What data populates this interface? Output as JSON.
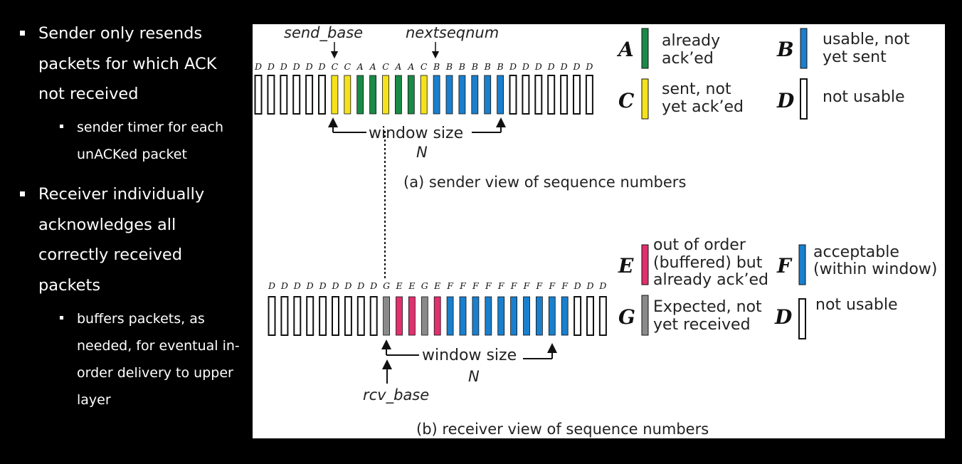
{
  "bullets": [
    {
      "text": "Sender only resends packets for which ACK not received",
      "sub": [
        {
          "text": "sender timer for each unACKed packet"
        }
      ]
    },
    {
      "text": "Receiver individually acknowledges all correctly received packets",
      "sub": [
        {
          "text": "buffers packets, as needed, for eventual in-order delivery to upper layer"
        }
      ]
    }
  ],
  "sender": {
    "letters": [
      "D",
      "D",
      "D",
      "D",
      "D",
      "D",
      "C",
      "C",
      "A",
      "A",
      "C",
      "A",
      "A",
      "C",
      "B",
      "B",
      "B",
      "B",
      "B",
      "B",
      "D",
      "D",
      "D",
      "D",
      "D",
      "D",
      "D"
    ],
    "send_base_label": "send_base",
    "nextseqnum_label": "nextseqnum",
    "window_label": "window size",
    "n_label": "N",
    "caption": "(a) sender view of sequence numbers",
    "legend": [
      {
        "key": "A",
        "color": "#1a8a46",
        "line1": "already",
        "line2": "ack’ed"
      },
      {
        "key": "B",
        "color": "#1a7fcc",
        "line1": "usable, not",
        "line2": "yet sent"
      },
      {
        "key": "C",
        "color": "#f5e21b",
        "line1": "sent, not",
        "line2": "yet ack’ed"
      },
      {
        "key": "D",
        "color": "#ffffff",
        "line1": "not usable",
        "line2": ""
      }
    ]
  },
  "receiver": {
    "letters": [
      "D",
      "D",
      "D",
      "D",
      "D",
      "D",
      "D",
      "D",
      "D",
      "G",
      "E",
      "E",
      "G",
      "E",
      "F",
      "F",
      "F",
      "F",
      "F",
      "F",
      "F",
      "F",
      "F",
      "F",
      "D",
      "D",
      "D"
    ],
    "rcv_base_label": "rcv_base",
    "window_label": "window size",
    "n_label": "N",
    "caption": "(b) receiver view of sequence numbers",
    "legend": [
      {
        "key": "E",
        "color": "#e0306e",
        "line1": "out of order",
        "line2": "(buffered) but",
        "line3": "already ack’ed"
      },
      {
        "key": "F",
        "color": "#1a7fcc",
        "line1": "acceptable",
        "line2": "(within window)",
        "line3": ""
      },
      {
        "key": "G",
        "color": "#8a8a8a",
        "line1": "Expected,  not",
        "line2": "yet received",
        "line3": ""
      },
      {
        "key": "D",
        "color": "#ffffff",
        "line1": "not usable",
        "line2": "",
        "line3": ""
      }
    ]
  },
  "colors": {
    "A": "#1a8a46",
    "B": "#1a7fcc",
    "C": "#f5e21b",
    "D": "#ffffff",
    "E": "#e0306e",
    "F": "#1a7fcc",
    "G": "#8a8a8a"
  }
}
